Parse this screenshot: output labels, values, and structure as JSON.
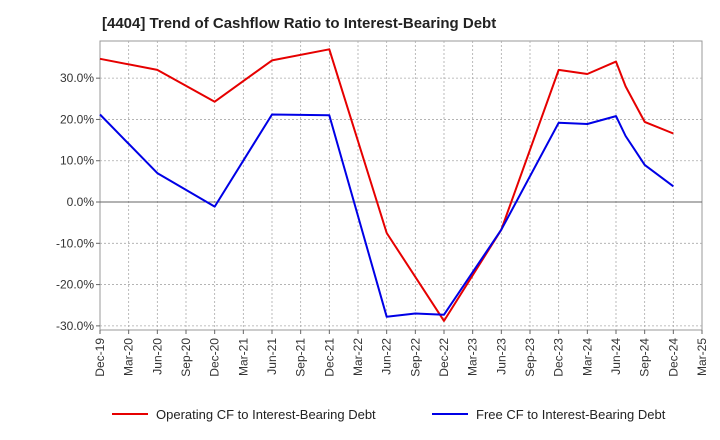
{
  "chart_data": {
    "type": "line",
    "title": "[4404]  Trend of Cashflow Ratio to Interest-Bearing Debt",
    "xlabel": "",
    "ylabel": "",
    "x_ticks": [
      "Dec-19",
      "Mar-20",
      "Jun-20",
      "Sep-20",
      "Dec-20",
      "Mar-21",
      "Jun-21",
      "Sep-21",
      "Dec-21",
      "Mar-22",
      "Jun-22",
      "Sep-22",
      "Dec-22",
      "Mar-23",
      "Jun-23",
      "Sep-23",
      "Dec-23",
      "Mar-24",
      "Jun-24",
      "Sep-24",
      "Dec-24",
      "Mar-25"
    ],
    "y_ticks": [
      "30.0%",
      "20.0%",
      "10.0%",
      "0.0%",
      "-10.0%",
      "-20.0%",
      "-30.0%"
    ],
    "ylim": [
      -31,
      39
    ],
    "grid": true,
    "legend_position": "bottom",
    "series": [
      {
        "name": "Operating CF to Interest-Bearing Debt",
        "color": "#e60000",
        "points": [
          {
            "x": "Dec-19",
            "y": 34.7
          },
          {
            "x": "Jun-20",
            "y": 32.0
          },
          {
            "x": "Dec-20",
            "y": 24.3
          },
          {
            "x": "Jun-21",
            "y": 34.3
          },
          {
            "x": "Dec-21",
            "y": 37.0
          },
          {
            "x": "Jun-22",
            "y": -7.5
          },
          {
            "x": "Dec-22",
            "y": -28.8
          },
          {
            "x": "Jun-23",
            "y": -6.7
          },
          {
            "x": "Dec-23",
            "y": 32.0
          },
          {
            "x": "Mar-24",
            "y": 31.0
          },
          {
            "x": "Jun-24",
            "y": 34.0
          },
          {
            "x": "Jul-24",
            "y": 28.0
          },
          {
            "x": "Sep-24",
            "y": 19.4
          },
          {
            "x": "Dec-24",
            "y": 16.6
          }
        ]
      },
      {
        "name": "Free CF to Interest-Bearing Debt",
        "color": "#0000e6",
        "points": [
          {
            "x": "Dec-19",
            "y": 21.2
          },
          {
            "x": "Jun-20",
            "y": 7.0
          },
          {
            "x": "Dec-20",
            "y": -1.1
          },
          {
            "x": "Jun-21",
            "y": 21.2
          },
          {
            "x": "Dec-21",
            "y": 21.0
          },
          {
            "x": "Jun-22",
            "y": -27.8
          },
          {
            "x": "Sep-22",
            "y": -27.0
          },
          {
            "x": "Dec-22",
            "y": -27.3
          },
          {
            "x": "Jun-23",
            "y": -6.7
          },
          {
            "x": "Dec-23",
            "y": 19.2
          },
          {
            "x": "Mar-24",
            "y": 18.9
          },
          {
            "x": "Jun-24",
            "y": 20.8
          },
          {
            "x": "Jul-24",
            "y": 16.0
          },
          {
            "x": "Sep-24",
            "y": 9.0
          },
          {
            "x": "Dec-24",
            "y": 3.8
          }
        ]
      }
    ]
  }
}
